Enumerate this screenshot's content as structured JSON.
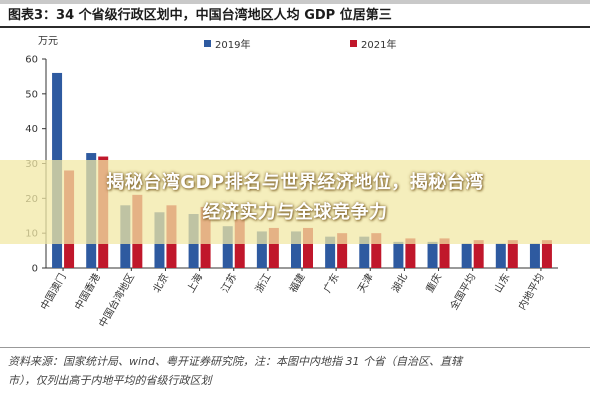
{
  "header": {
    "title": "图表3：34 个省级行政区划中，中国台湾地区人均 GDP 位居第三"
  },
  "banner": {
    "line1": "揭秘台湾GDP排名与世界经济地位，揭秘台湾",
    "line2": "经济实力与全球竞争力"
  },
  "source": {
    "line1": "资料来源：国家统计局、wind、粤开证券研究院，注：本图中内地指 31 个省（自治区、直辖",
    "line2": "市），仅列出高于内地平均的省级行政区划"
  },
  "colors": {
    "y2019": "#2e5aa0",
    "y2021": "#c0172b",
    "bg": "#ffffff"
  },
  "chart_data": {
    "type": "bar",
    "ylabel": "万元",
    "ylim": [
      0,
      60
    ],
    "yticks": [
      0,
      10,
      20,
      30,
      40,
      50,
      60
    ],
    "categories": [
      "中国澳门",
      "中国香港",
      "中国台湾地区",
      "北京",
      "上海",
      "江苏",
      "浙江",
      "福建",
      "广东",
      "天津",
      "湖北",
      "重庆",
      "全国平均",
      "山东",
      "内地平均"
    ],
    "series": [
      {
        "name": "2019年",
        "values": [
          56,
          33,
          18,
          16,
          15.5,
          12,
          10.5,
          10.5,
          9,
          9,
          7.5,
          7.5,
          7,
          7,
          7
        ]
      },
      {
        "name": "2021年",
        "values": [
          28,
          32,
          21,
          18,
          17.5,
          14,
          11.5,
          11.5,
          10,
          10,
          8.5,
          8.5,
          8,
          8,
          8
        ]
      }
    ],
    "legend_position": "top",
    "grid": false
  }
}
